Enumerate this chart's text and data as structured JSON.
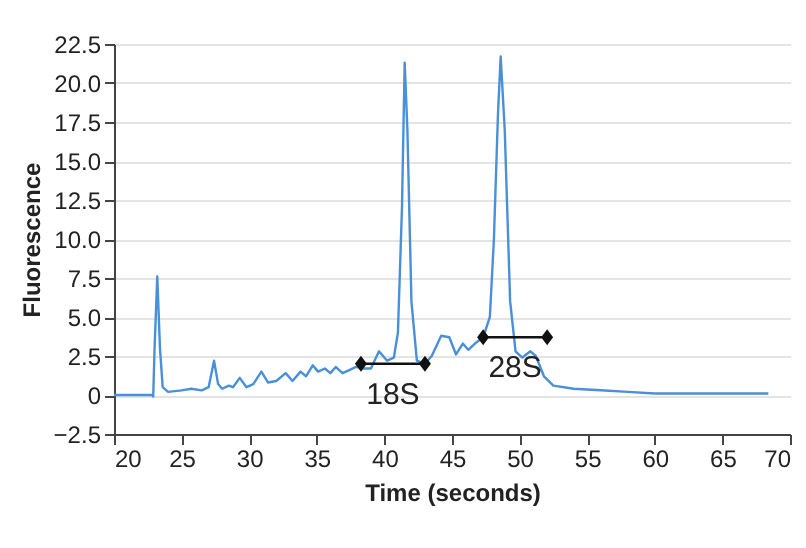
{
  "chart_data": {
    "type": "line",
    "xlabel": "Time (seconds)",
    "ylabel": "Fluorescence",
    "xlim": [
      20,
      70
    ],
    "xticks": [
      20,
      25,
      30,
      35,
      40,
      45,
      50,
      55,
      60,
      65,
      70
    ],
    "ylim": [
      -2.5,
      22.5
    ],
    "yticks": [
      {
        "value": -2.5,
        "label": "−2.5"
      },
      0,
      {
        "value": 2.5,
        "label": "2.5"
      },
      {
        "value": 5,
        "label": "5.0"
      },
      {
        "value": 7.5,
        "label": "7.5"
      },
      {
        "value": 10,
        "label": "10.0"
      },
      {
        "value": 12.5,
        "label": "12.5"
      },
      {
        "value": 15,
        "label": "15.0"
      },
      {
        "value": 17.5,
        "label": "17.5"
      },
      {
        "value": 20,
        "label": "20.0"
      },
      {
        "value": 22.5,
        "label": "22.5"
      }
    ],
    "grid": "y",
    "line_style": "solid",
    "x": [
      20,
      22.8,
      22.9,
      23.0,
      23.2,
      23.4,
      23.6,
      24,
      25,
      25.7,
      26.5,
      27,
      27.4,
      27.7,
      28,
      28.5,
      28.8,
      29.3,
      29.8,
      30.3,
      30.9,
      31.4,
      32,
      32.7,
      33.2,
      33.8,
      34.2,
      34.7,
      35.1,
      35.6,
      36,
      36.4,
      36.9,
      37.4,
      37.9,
      38.5,
      39,
      39.6,
      40.2,
      40.7,
      41,
      41.3,
      41.5,
      41.7,
      42,
      42.4,
      43,
      43.5,
      44.2,
      44.8,
      45.3,
      45.8,
      46.2,
      46.7,
      47.3,
      47.8,
      48.1,
      48.4,
      48.6,
      48.9,
      49.3,
      49.7,
      50.2,
      50.8,
      51.2,
      51.8,
      52.5,
      54,
      56,
      58,
      60,
      62,
      64,
      66,
      68.4
    ],
    "series": [
      {
        "color": "#4a90d9",
        "values": [
          0,
          0,
          -0.1,
          3,
          7.6,
          3,
          0.5,
          0.2,
          0.3,
          0.4,
          0.3,
          0.5,
          2.2,
          0.7,
          0.4,
          0.6,
          0.5,
          1.1,
          0.5,
          0.7,
          1.5,
          0.8,
          0.9,
          1.4,
          0.9,
          1.5,
          1.2,
          1.9,
          1.5,
          1.7,
          1.4,
          1.8,
          1.4,
          1.6,
          1.8,
          1.7,
          1.7,
          2.8,
          2.2,
          2.4,
          4,
          12,
          21.3,
          17,
          6,
          2.2,
          2.0,
          2.5,
          3.8,
          3.7,
          2.6,
          3.3,
          2.9,
          3.3,
          3.7,
          5,
          10,
          18,
          21.7,
          17,
          6,
          2.8,
          2.4,
          2.8,
          2.5,
          1.2,
          0.6,
          0.4,
          0.3,
          0.2,
          0.1,
          0.1,
          0.1,
          0.1,
          0.1
        ]
      }
    ],
    "annotations": [
      {
        "text": "18S",
        "x": 43,
        "y": 2.0
      },
      {
        "text": "28S",
        "x": 47.3,
        "y": 3.7
      }
    ]
  }
}
